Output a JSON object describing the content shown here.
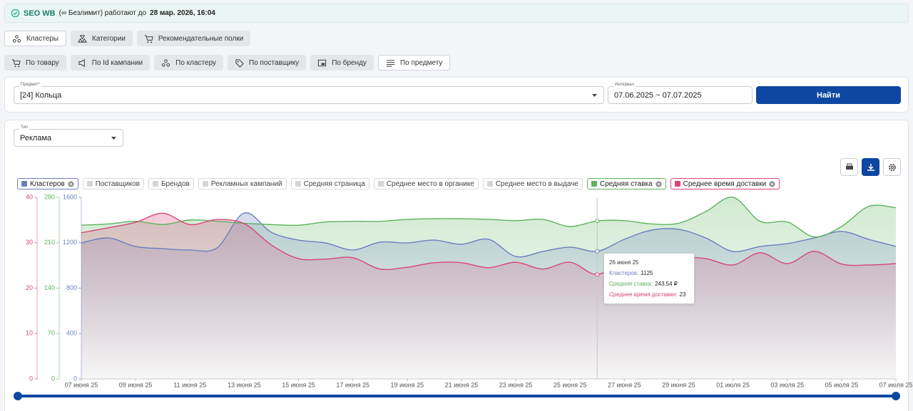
{
  "header": {
    "brand": "SEO WB",
    "note": "(∞ Безлимит) работают до",
    "until": "28 мар. 2026, 16:04"
  },
  "tabs": [
    "Кластеры",
    "Категории",
    "Рекомендательные полки"
  ],
  "subtabs": [
    "По товару",
    "По Id кампании",
    "По кластеру",
    "По поставщику",
    "По бренду",
    "По предмету"
  ],
  "filters": {
    "subject_label": "Предмет*",
    "subject": "[24] Кольца",
    "interval_label": "Интервал",
    "interval": "07.06.2025 ~ 07.07.2025",
    "search": "Найти"
  },
  "type_select": {
    "label": "Тип",
    "value": "Реклама"
  },
  "chart_data": {
    "type": "area",
    "categories": [
      "07 июня 25",
      null,
      "09 июня 25",
      null,
      "11 июня 25",
      null,
      "13 июня 25",
      null,
      "15 июня 25",
      null,
      "17 июня 25",
      null,
      "19 июня 25",
      null,
      "21 июня 25",
      null,
      "23 июня 25",
      null,
      "25 июня 25",
      null,
      "27 июня 25",
      null,
      "29 июня 25",
      null,
      "01 июля 25",
      null,
      "03 июля 25",
      null,
      "05 июля 25",
      null,
      "07 июля 25"
    ],
    "series": [
      {
        "name": "Кластеров",
        "color": "#6b7fbf",
        "axis": "y",
        "values": [
          1198,
          1242,
          1167,
          1148,
          1136,
          1155,
          1462,
          1292,
          1223,
          1198,
          1136,
          1205,
          1198,
          1223,
          1186,
          1230,
          1079,
          1123,
          1161,
          1125,
          1230,
          1311,
          1318,
          1242,
          1123,
          1167,
          1192,
          1242,
          1299,
          1230,
          1167
        ]
      },
      {
        "name": "Средняя ставка",
        "color": "#5cb35c",
        "axis": "y2",
        "values": [
          237,
          239,
          243,
          238,
          245,
          243,
          240,
          238,
          237,
          242,
          243,
          243,
          246,
          247,
          247,
          246,
          244,
          246,
          235,
          243.54,
          244,
          239,
          240,
          258,
          280,
          243,
          242,
          219,
          235,
          266,
          264
        ]
      },
      {
        "name": "Среднее время доставки",
        "color": "#d6457a",
        "axis": "y3",
        "values": [
          32.2,
          33.3,
          34.5,
          36.5,
          34,
          35.1,
          34.2,
          29.5,
          26.5,
          26.4,
          26.7,
          24.2,
          24.6,
          25.6,
          25.6,
          24.5,
          25.7,
          24.2,
          25.7,
          23,
          26.4,
          26.7,
          26.8,
          26.5,
          25.1,
          27.8,
          25.4,
          28.1,
          25.3,
          25.1,
          25.4
        ]
      }
    ],
    "inactive_legend": [
      "Поставщиков",
      "Брендов",
      "Рекламных кампаний",
      "Средняя страница",
      "Среднее место в органике",
      "Среднее место в выдаче"
    ],
    "ylim": [
      0,
      1600
    ],
    "yticks": [
      0,
      400,
      800,
      1200,
      1600
    ],
    "y2lim": [
      0,
      280
    ],
    "y2ticks": [
      0,
      70,
      140,
      210,
      280
    ],
    "y3lim": [
      0,
      40
    ],
    "y3ticks": [
      0,
      10,
      20,
      30,
      40
    ],
    "tooltip": {
      "title": "26 июня 25",
      "items": [
        {
          "label": "Кластеров:",
          "value": "1125"
        },
        {
          "label": "Средняя ставка:",
          "value": "243.54 ₽"
        },
        {
          "label": "Среднее время доставки:",
          "value": "23"
        }
      ]
    }
  }
}
